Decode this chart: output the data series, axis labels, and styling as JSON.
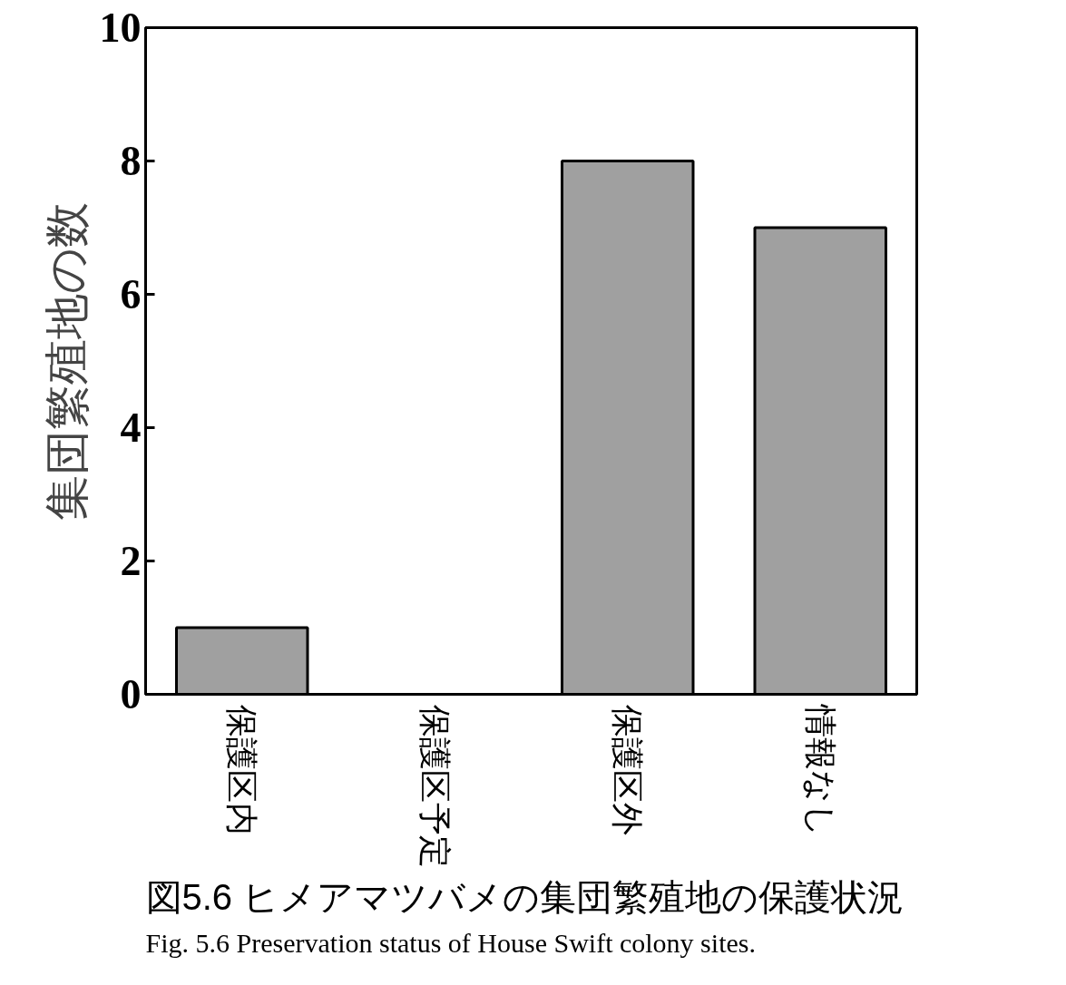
{
  "chart_data": {
    "type": "bar",
    "title": "図5.6 ヒメアマツバメの集団繁殖地の保護状況",
    "annotations": [
      "Fig. 5.6 Preservation status of House Swift colony sites."
    ],
    "ylabel": "集団繁殖地の数",
    "categories": [
      "保護区内",
      "保護区予定",
      "保護区外",
      "情報なし"
    ],
    "values": [
      1,
      0,
      8,
      7
    ],
    "color": "#a0a0a0",
    "ylim": [
      0,
      10
    ],
    "yticks": [
      0,
      2,
      4,
      6,
      8,
      10
    ],
    "grid": false
  }
}
